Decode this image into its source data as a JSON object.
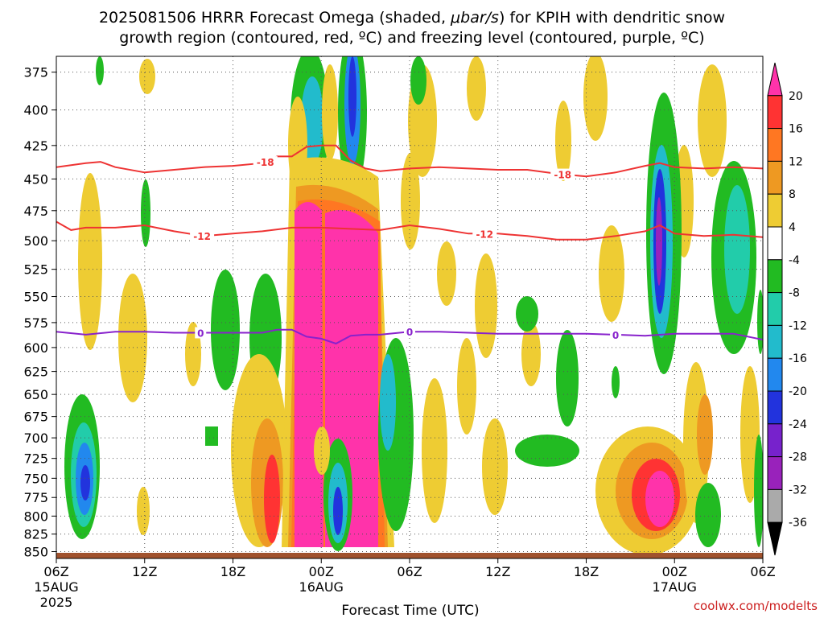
{
  "chart_data": {
    "type": "heatmap",
    "title": {
      "line1_pre": "2025081506 HRRR Forecast Omega (shaded, ",
      "line1_unit": "μbar/s",
      "line1_post": ") for KPIH with dendritic snow",
      "line2": "growth region (contoured, red, ºC) and freezing level (contoured, purple, ºC)"
    },
    "xlabel": "Forecast Time (UTC)",
    "credit": "coolwx.com/modelts",
    "y_axis": {
      "scale": "pressure (inverted)",
      "range": [
        860,
        365
      ],
      "ticks": [
        375,
        400,
        425,
        450,
        475,
        500,
        525,
        550,
        575,
        600,
        625,
        650,
        675,
        700,
        725,
        750,
        775,
        800,
        825,
        850
      ]
    },
    "x_axis": {
      "range_hours": [
        0,
        48
      ],
      "ticks": [
        {
          "hour": 0,
          "line1": "06Z",
          "line2": "15AUG",
          "line3": "2025"
        },
        {
          "hour": 6,
          "line1": "12Z",
          "line2": "",
          "line3": ""
        },
        {
          "hour": 12,
          "line1": "18Z",
          "line2": "",
          "line3": ""
        },
        {
          "hour": 18,
          "line1": "00Z",
          "line2": "16AUG",
          "line3": ""
        },
        {
          "hour": 24,
          "line1": "06Z",
          "line2": "",
          "line3": ""
        },
        {
          "hour": 30,
          "line1": "12Z",
          "line2": "",
          "line3": ""
        },
        {
          "hour": 36,
          "line1": "18Z",
          "line2": "",
          "line3": ""
        },
        {
          "hour": 42,
          "line1": "00Z",
          "line2": "17AUG",
          "line3": ""
        },
        {
          "hour": 48,
          "line1": "06Z",
          "line2": "",
          "line3": ""
        }
      ]
    },
    "colorbar": {
      "bins": [
        {
          "color": "#ff33aa",
          "lo": 20,
          "hi": null
        },
        {
          "color": "#ff3333",
          "lo": 16,
          "hi": 20
        },
        {
          "color": "#ff7722",
          "lo": 12,
          "hi": 16
        },
        {
          "color": "#ee9922",
          "lo": 8,
          "hi": 12
        },
        {
          "color": "#eecc33",
          "lo": 4,
          "hi": 8
        },
        {
          "color": "#ffffff",
          "lo": -4,
          "hi": 4
        },
        {
          "color": "#22bb22",
          "lo": -8,
          "hi": -4
        },
        {
          "color": "#22ccaa",
          "lo": -12,
          "hi": -8
        },
        {
          "color": "#22bbcc",
          "lo": -16,
          "hi": -12
        },
        {
          "color": "#2288ee",
          "lo": -20,
          "hi": -16
        },
        {
          "color": "#2233dd",
          "lo": -24,
          "hi": -20
        },
        {
          "color": "#7722cc",
          "lo": -28,
          "hi": -24
        },
        {
          "color": "#9922bb",
          "lo": -32,
          "hi": -28
        },
        {
          "color": "#aaaaaa",
          "lo": -36,
          "hi": -32
        },
        {
          "color": "#000000",
          "lo": null,
          "hi": -36
        }
      ],
      "labels": [
        "20",
        "16",
        "12",
        "8",
        "4",
        "-4",
        "-8",
        "-12",
        "-16",
        "-20",
        "-24",
        "-28",
        "-32",
        "-36"
      ]
    },
    "contours": [
      {
        "name": "-18",
        "color": "#ee3333",
        "labels": [
          "-18",
          "-18"
        ],
        "label_hours": [
          14.2,
          34.4
        ],
        "hours": [
          0,
          2,
          3,
          4,
          6,
          8,
          10,
          12,
          14,
          15,
          16,
          17,
          18,
          19,
          20,
          21,
          22,
          24,
          26,
          28,
          30,
          32,
          34,
          36,
          38,
          40,
          41,
          42,
          44,
          46,
          48
        ],
        "pressure": [
          441,
          438,
          437,
          441,
          445,
          443,
          441,
          440,
          438,
          433,
          433,
          426,
          425,
          425,
          436,
          442,
          444,
          442,
          441,
          442,
          443,
          443,
          446,
          448,
          445,
          440,
          438,
          441,
          442,
          441,
          442
        ]
      },
      {
        "name": "-12",
        "color": "#ee3333",
        "labels": [
          "-12",
          "-12"
        ],
        "label_hours": [
          9.9,
          29.1
        ],
        "hours": [
          0,
          1,
          2,
          4,
          6,
          8,
          10,
          12,
          14,
          16,
          18,
          20,
          22,
          24,
          26,
          28,
          30,
          32,
          34,
          36,
          38,
          40,
          41,
          42,
          44,
          46,
          48
        ],
        "pressure": [
          484,
          491,
          489,
          489,
          487,
          492,
          496,
          494,
          492,
          489,
          489,
          490,
          491,
          487,
          490,
          494,
          494,
          496,
          499,
          499,
          496,
          492,
          487,
          494,
          496,
          495,
          497
        ]
      },
      {
        "name": "0",
        "color": "#8822cc",
        "labels": [
          "0",
          "0",
          "0"
        ],
        "label_hours": [
          9.8,
          24.0,
          38.0
        ],
        "hours": [
          0,
          2,
          4,
          6,
          8,
          10,
          12,
          14,
          15,
          16,
          17,
          18,
          19,
          20,
          21,
          22,
          24,
          26,
          28,
          30,
          32,
          34,
          36,
          38,
          40,
          42,
          44,
          46,
          48
        ],
        "pressure": [
          584,
          587,
          584,
          584,
          585,
          585,
          585,
          585,
          582,
          582,
          589,
          591,
          596,
          588,
          587,
          587,
          584,
          584,
          585,
          586,
          586,
          586,
          586,
          587,
          588,
          586,
          586,
          586,
          592
        ]
      }
    ]
  }
}
